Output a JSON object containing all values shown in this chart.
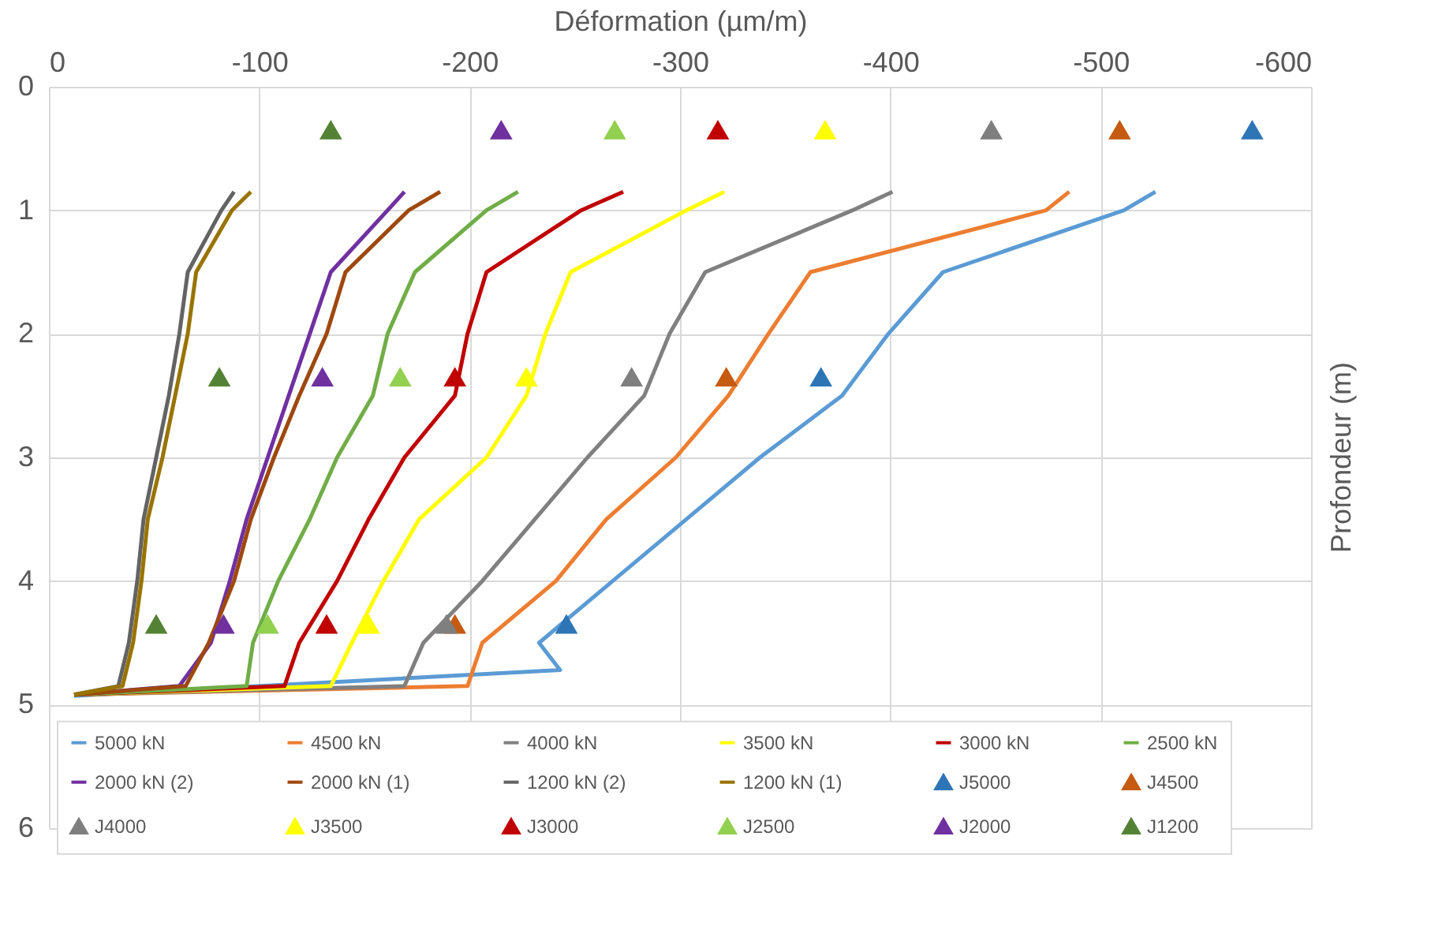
{
  "chart_data": {
    "type": "line",
    "xlabel": "Déformation (µm/m)",
    "ylabel": "Profondeur (m)",
    "xlim": [
      0,
      -600
    ],
    "xticks": [
      0,
      -100,
      -200,
      -300,
      -400,
      -500,
      -600
    ],
    "ylim": [
      6,
      0
    ],
    "yticks": [
      0,
      1,
      2,
      3,
      4,
      5,
      6
    ],
    "grid": true,
    "legend": "bottom",
    "line_style": "solid",
    "series": [
      {
        "name": "5000 kN",
        "color": "#5b9bd5",
        "x": [
          -526,
          -511,
          -425,
          -399,
          -377,
          -338,
          -303,
          -268,
          -233,
          -243,
          -12
        ],
        "values": [
          0.85,
          1,
          1.5,
          2,
          2.5,
          3,
          3.5,
          4,
          4.5,
          4.72,
          4.93
        ]
      },
      {
        "name": "4500 kN",
        "color": "#ed7d31",
        "x": [
          -485,
          -474,
          -362,
          -342,
          -323,
          -298,
          -265,
          -241,
          -206,
          -199,
          -12
        ],
        "values": [
          0.85,
          1,
          1.5,
          2,
          2.5,
          3,
          3.5,
          4,
          4.5,
          4.85,
          4.92
        ]
      },
      {
        "name": "4000 kN",
        "color": "#808080",
        "x": [
          -401,
          -382,
          -312,
          -295,
          -283,
          -256,
          -231,
          -206,
          -178,
          -169,
          -12
        ],
        "values": [
          0.85,
          1,
          1.5,
          2,
          2.5,
          3,
          3.5,
          4,
          4.5,
          4.85,
          4.92
        ]
      },
      {
        "name": "3500 kN",
        "color": "#ffff00",
        "x": [
          -321,
          -303,
          -248,
          -236,
          -227,
          -208,
          -176,
          -159,
          -144,
          -134,
          -12
        ],
        "values": [
          0.85,
          1,
          1.5,
          2,
          2.5,
          3,
          3.5,
          4,
          4.5,
          4.85,
          4.92
        ]
      },
      {
        "name": "3000 kN",
        "color": "#c00000",
        "x": [
          -273,
          -253,
          -208,
          -199,
          -193,
          -169,
          -152,
          -137,
          -119,
          -112,
          -12
        ],
        "values": [
          0.85,
          1,
          1.5,
          2,
          2.5,
          3,
          3.5,
          4,
          4.5,
          4.85,
          4.92
        ]
      },
      {
        "name": "2500 kN",
        "color": "#70ad47",
        "x": [
          -223,
          -208,
          -174,
          -161,
          -154,
          -137,
          -124,
          -109,
          -97,
          -94,
          -12
        ],
        "values": [
          0.85,
          1,
          1.5,
          2,
          2.5,
          3,
          3.5,
          4,
          4.5,
          4.85,
          4.92
        ]
      },
      {
        "name": "2000 kN (2)",
        "color": "#7030a0",
        "x": [
          -169,
          -161,
          -134,
          -124,
          -114,
          -104,
          -94,
          -86,
          -77,
          -62,
          -12
        ],
        "values": [
          0.85,
          1,
          1.5,
          2,
          2.5,
          3,
          3.5,
          4,
          4.5,
          4.85,
          4.92
        ]
      },
      {
        "name": "2000 kN (1)",
        "color": "#9e480e",
        "x": [
          -186,
          -171,
          -141,
          -132,
          -119,
          -107,
          -96,
          -88,
          -76,
          -65,
          -12
        ],
        "values": [
          0.85,
          1,
          1.5,
          2,
          2.5,
          3,
          3.5,
          4,
          4.5,
          4.85,
          4.92
        ]
      },
      {
        "name": "1200 kN (2)",
        "color": "#636363",
        "x": [
          -88,
          -82,
          -66,
          -62,
          -57,
          -51,
          -45,
          -42,
          -38,
          -33,
          -12
        ],
        "values": [
          0.85,
          1,
          1.5,
          2,
          2.5,
          3,
          3.5,
          4,
          4.5,
          4.85,
          4.92
        ]
      },
      {
        "name": "1200 kN (1)",
        "color": "#997300",
        "x": [
          -96,
          -87,
          -70,
          -66,
          -60,
          -54,
          -47,
          -44,
          -40,
          -35,
          -12
        ],
        "values": [
          0.85,
          1,
          1.5,
          2,
          2.5,
          3,
          3.5,
          4,
          4.5,
          4.85,
          4.92
        ]
      },
      {
        "name": "J5000",
        "type": "scatter",
        "marker": "triangle",
        "color": "#2e75b6",
        "x": [
          -572,
          -367,
          -246
        ],
        "values": [
          0.35,
          2.35,
          4.35
        ]
      },
      {
        "name": "J4500",
        "type": "scatter",
        "marker": "triangle",
        "color": "#c55a11",
        "x": [
          -509,
          -322,
          -193
        ],
        "values": [
          0.35,
          2.35,
          4.35
        ]
      },
      {
        "name": "J4000",
        "type": "scatter",
        "marker": "triangle",
        "color": "#7f7f7f",
        "x": [
          -448,
          -277,
          -189
        ],
        "values": [
          0.35,
          2.35,
          4.35
        ]
      },
      {
        "name": "J3500",
        "type": "scatter",
        "marker": "triangle",
        "color": "#ffff00",
        "x": [
          -369,
          -227,
          -152
        ],
        "values": [
          0.35,
          2.35,
          4.35
        ]
      },
      {
        "name": "J3000",
        "type": "scatter",
        "marker": "triangle",
        "color": "#c00000",
        "x": [
          -318,
          -193,
          -132
        ],
        "values": [
          0.35,
          2.35,
          4.35
        ]
      },
      {
        "name": "J2500",
        "type": "scatter",
        "marker": "triangle",
        "color": "#92d050",
        "x": [
          -269,
          -167,
          -104
        ],
        "values": [
          0.35,
          2.35,
          4.35
        ]
      },
      {
        "name": "J2000",
        "type": "scatter",
        "marker": "triangle",
        "color": "#7030a0",
        "x": [
          -215,
          -130,
          -83
        ],
        "values": [
          0.35,
          2.35,
          4.35
        ]
      },
      {
        "name": "J1200",
        "type": "scatter",
        "marker": "triangle",
        "color": "#548235",
        "x": [
          -134,
          -81,
          -51
        ],
        "values": [
          0.35,
          2.35,
          4.35
        ]
      }
    ]
  }
}
